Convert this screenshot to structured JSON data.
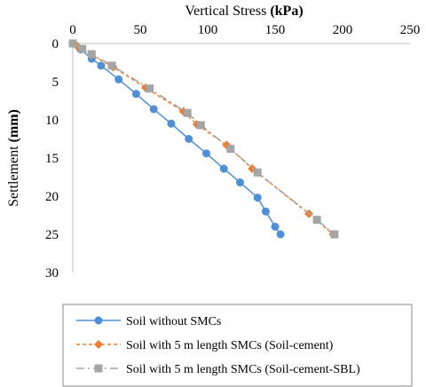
{
  "chart_data": {
    "type": "scatter",
    "xlabel": "Vertical Stress",
    "xlabel_unit": "(kPa)",
    "ylabel": "Settlement",
    "ylabel_unit": "(mm)",
    "x_axis_position": "top",
    "y_axis_inverted": true,
    "xlim": [
      0,
      250
    ],
    "ylim": [
      0,
      30
    ],
    "x_ticks": [
      "0",
      "50",
      "100",
      "150",
      "200",
      "250"
    ],
    "y_ticks": [
      "0",
      "5",
      "10",
      "15",
      "20",
      "25",
      "30"
    ],
    "grid": false,
    "legend_position": "bottom",
    "series": [
      {
        "name": "Soil without SMCs",
        "color": "#4f8fd6",
        "line_style": "solid",
        "marker": "circle",
        "points": [
          [
            0,
            0
          ],
          [
            6,
            0.8
          ],
          [
            14,
            2
          ],
          [
            21,
            2.9
          ],
          [
            34,
            4.7
          ],
          [
            47,
            6.6
          ],
          [
            60,
            8.6
          ],
          [
            73,
            10.5
          ],
          [
            86,
            12.5
          ],
          [
            99,
            14.4
          ],
          [
            112,
            16.4
          ],
          [
            124,
            18.2
          ],
          [
            137,
            20.2
          ],
          [
            143,
            22
          ],
          [
            150,
            24
          ],
          [
            154,
            25
          ]
        ]
      },
      {
        "name": "Soil with 5 m length SMCs (Soil-cement)",
        "color": "#ed7d31",
        "line_style": "dashed",
        "marker": "diamond",
        "points": [
          [
            0,
            0
          ],
          [
            3,
            0.3
          ],
          [
            14,
            1.5
          ],
          [
            30,
            3.1
          ],
          [
            54,
            5.8
          ],
          [
            82,
            8.9
          ],
          [
            92,
            10.6
          ],
          [
            114,
            13.3
          ],
          [
            133,
            16.4
          ],
          [
            175,
            22.3
          ],
          [
            193,
            25
          ]
        ]
      },
      {
        "name": "Soil with 5 m length SMCs (Soil-cement-SBL)",
        "color": "#a5a5a5",
        "line_style": "dash-dot",
        "marker": "square",
        "points": [
          [
            0,
            0
          ],
          [
            7,
            0.7
          ],
          [
            14,
            1.4
          ],
          [
            29,
            2.9
          ],
          [
            57,
            5.9
          ],
          [
            85,
            9.1
          ],
          [
            95,
            10.7
          ],
          [
            117,
            13.8
          ],
          [
            137,
            16.9
          ],
          [
            181,
            23.1
          ],
          [
            194,
            25
          ]
        ]
      }
    ]
  }
}
